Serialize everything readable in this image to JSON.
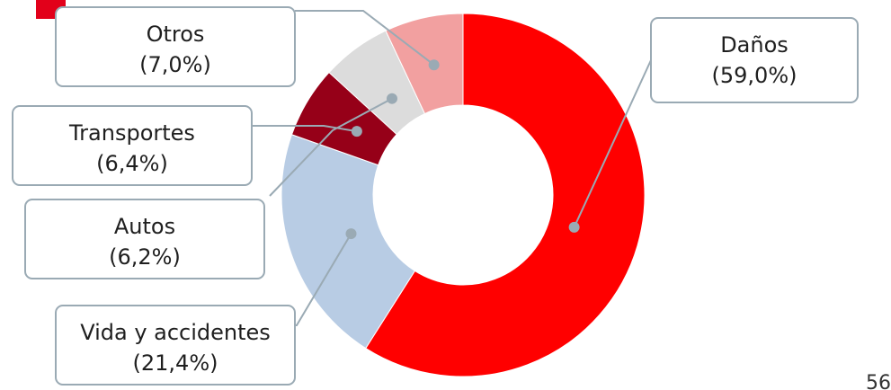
{
  "accent_color": "#e2001a",
  "page_number": "56",
  "chart_data": {
    "type": "pie",
    "variant": "donut",
    "title": "",
    "categories": [
      "Daños",
      "Vida y accidentes",
      "Autos",
      "Transportes",
      "Otros"
    ],
    "values": [
      59.0,
      21.4,
      6.2,
      6.4,
      7.0
    ],
    "display_labels": [
      "(59,0%)",
      "(21,4%)",
      "(6,2%)",
      "(6,4%)",
      "(7,0%)"
    ],
    "colors": [
      "#ff0000",
      "#b8cce4",
      "#dcdcdc",
      "#960018",
      "#f2a0a0"
    ],
    "slice_order": [
      "Daños",
      "Vida y accidentes",
      "Transportes",
      "Autos",
      "Otros"
    ],
    "legend": "none",
    "unit": "%"
  }
}
